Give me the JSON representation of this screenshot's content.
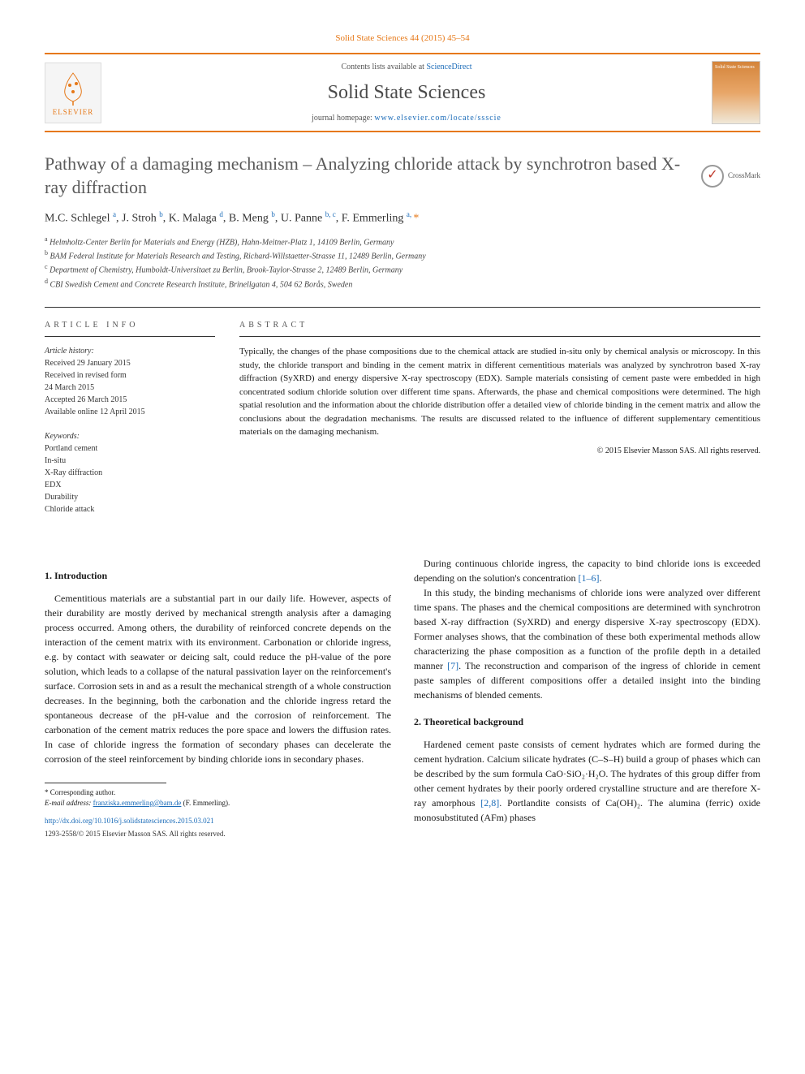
{
  "citation": "Solid State Sciences 44 (2015) 45–54",
  "header": {
    "contents_prefix": "Contents lists available at ",
    "contents_link": "ScienceDirect",
    "journal_name": "Solid State Sciences",
    "homepage_prefix": "journal homepage: ",
    "homepage_link": "www.elsevier.com/locate/ssscie",
    "elsevier_label": "ELSEVIER",
    "cover_text": "Solid State Sciences"
  },
  "crossmark": "CrossMark",
  "title": "Pathway of a damaging mechanism – Analyzing chloride attack by synchrotron based X-ray diffraction",
  "authors_html": "M.C. Schlegel <sup>a</sup>, J. Stroh <sup>b</sup>, K. Malaga <sup>d</sup>, B. Meng <sup>b</sup>, U. Panne <sup>b, c</sup>, F. Emmerling <sup>a, </sup><span class='star'>*</span>",
  "affiliations": [
    {
      "sup": "a",
      "text": "Helmholtz-Center Berlin for Materials and Energy (HZB), Hahn-Meitner-Platz 1, 14109 Berlin, Germany"
    },
    {
      "sup": "b",
      "text": "BAM Federal Institute for Materials Research and Testing, Richard-Willstaetter-Strasse 11, 12489 Berlin, Germany"
    },
    {
      "sup": "c",
      "text": "Department of Chemistry, Humboldt-Universitaet zu Berlin, Brook-Taylor-Strasse 2, 12489 Berlin, Germany"
    },
    {
      "sup": "d",
      "text": "CBI Swedish Cement and Concrete Research Institute, Brinellgatan 4, 504 62 Borås, Sweden"
    }
  ],
  "article_info": {
    "heading": "ARTICLE INFO",
    "history_label": "Article history:",
    "history": [
      "Received 29 January 2015",
      "Received in revised form",
      "24 March 2015",
      "Accepted 26 March 2015",
      "Available online 12 April 2015"
    ],
    "keywords_label": "Keywords:",
    "keywords": [
      "Portland cement",
      "In-situ",
      "X-Ray diffraction",
      "EDX",
      "Durability",
      "Chloride attack"
    ]
  },
  "abstract": {
    "heading": "ABSTRACT",
    "text": "Typically, the changes of the phase compositions due to the chemical attack are studied in-situ only by chemical analysis or microscopy. In this study, the chloride transport and binding in the cement matrix in different cementitious materials was analyzed by synchrotron based X-ray diffraction (SyXRD) and energy dispersive X-ray spectroscopy (EDX). Sample materials consisting of cement paste were embedded in high concentrated sodium chloride solution over different time spans. Afterwards, the phase and chemical compositions were determined. The high spatial resolution and the information about the chloride distribution offer a detailed view of chloride binding in the cement matrix and allow the conclusions about the degradation mechanisms. The results are discussed related to the influence of different supplementary cementitious materials on the damaging mechanism.",
    "copyright": "© 2015 Elsevier Masson SAS. All rights reserved."
  },
  "sections": {
    "intro_heading": "1. Introduction",
    "intro_p1": "Cementitious materials are a substantial part in our daily life. However, aspects of their durability are mostly derived by mechanical strength analysis after a damaging process occurred. Among others, the durability of reinforced concrete depends on the interaction of the cement matrix with its environment. Carbonation or chloride ingress, e.g. by contact with seawater or deicing salt, could reduce the pH-value of the pore solution, which leads to a collapse of the natural passivation layer on the reinforcement's surface. Corrosion sets in and as a result the mechanical strength of a whole construction decreases. In the beginning, both the carbonation and the chloride ingress retard the spontaneous decrease of the pH-value and the corrosion of reinforcement. The carbonation of the cement matrix reduces the pore space and lowers the diffusion rates. In case of chloride ingress the formation of secondary phases can decelerate the corrosion of the steel reinforcement by binding chloride ions in secondary phases.",
    "intro_p2_prefix": "During continuous chloride ingress, the capacity to bind chloride ions is exceeded depending on the solution's concentration ",
    "intro_p2_ref": "[1–6]",
    "intro_p2_suffix": ".",
    "intro_p3_prefix": "In this study, the binding mechanisms of chloride ions were analyzed over different time spans. The phases and the chemical compositions are determined with synchrotron based X-ray diffraction (SyXRD) and energy dispersive X-ray spectroscopy (EDX). Former analyses shows, that the combination of these both experimental methods allow characterizing the phase composition as a function of the profile depth in a detailed manner ",
    "intro_p3_ref": "[7]",
    "intro_p3_suffix": ". The reconstruction and comparison of the ingress of chloride in cement paste samples of different compositions offer a detailed insight into the binding mechanisms of blended cements.",
    "theory_heading": "2. Theoretical background",
    "theory_p1_prefix": "Hardened cement paste consists of cement hydrates which are formed during the cement hydration. Calcium silicate hydrates (C–S–H) build a group of phases which can be described by the sum formula CaO·SiO₂·H₂O. The hydrates of this group differ from other cement hydrates by their poorly ordered crystalline structure and are therefore X-ray amorphous ",
    "theory_p1_ref": "[2,8]",
    "theory_p1_suffix": ". Portlandite consists of Ca(OH)₂. The alumina (ferric) oxide monosubstituted (AFm) phases"
  },
  "footer": {
    "corr_label": "* Corresponding author.",
    "email_label": "E-mail address: ",
    "email": "franziska.emmerling@bam.de",
    "email_suffix": " (F. Emmerling).",
    "doi": "http://dx.doi.org/10.1016/j.solidstatesciences.2015.03.021",
    "copyright": "1293-2558/© 2015 Elsevier Masson SAS. All rights reserved."
  },
  "colors": {
    "accent": "#e67817",
    "link": "#1a6bb8",
    "text": "#1a1a1a",
    "heading_gray": "#5a5a5a"
  }
}
